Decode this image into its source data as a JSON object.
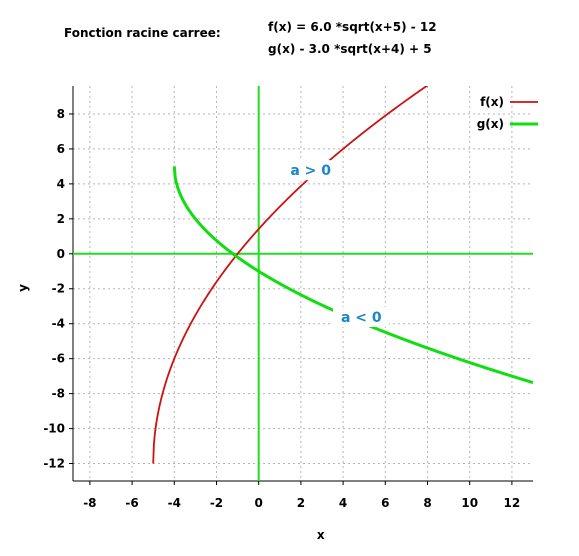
{
  "header": {
    "label": "Fonction racine carree:",
    "formula_f": "f(x) = 6.0 *sqrt(x+5) - 12",
    "formula_g": "g(x) - 3.0 *sqrt(x+4) + 5"
  },
  "chart_data": {
    "type": "line",
    "xlabel": "x",
    "ylabel": "y",
    "xlim": [
      -8.8,
      13
    ],
    "ylim": [
      -13,
      9.6
    ],
    "xticks": [
      -8,
      -6,
      -4,
      -2,
      0,
      2,
      4,
      6,
      8,
      10,
      12
    ],
    "yticks": [
      -12,
      -10,
      -8,
      -6,
      -4,
      -2,
      0,
      2,
      4,
      6,
      8
    ],
    "grid": true,
    "legend_position": "top-right",
    "series": [
      {
        "name": "f(x)",
        "color": "#cc1111",
        "a": 6.0,
        "h": 5,
        "k": -12,
        "x_start": -5,
        "x_end": 8.11
      },
      {
        "name": "g(x)",
        "color": "#11dd11",
        "a": -3.0,
        "h": 4,
        "k": 5,
        "x_start": -4,
        "x_end": 13
      }
    ],
    "annotations": [
      {
        "text": "a > 0",
        "x": 1.5,
        "y": 4.5
      },
      {
        "text": "a < 0",
        "x": 3.9,
        "y": -3.9
      }
    ]
  }
}
